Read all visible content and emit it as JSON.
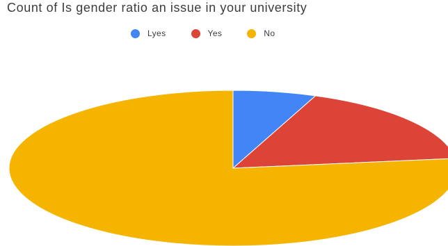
{
  "chart_data": {
    "type": "pie",
    "title": "Count of Is gender ratio an issue in your university",
    "legend": {
      "placement": "top",
      "entries": [
        "Lyes",
        "Yes",
        "No"
      ]
    },
    "slices": [
      {
        "label": "Lyes",
        "value": 6,
        "color": "#4285f4"
      },
      {
        "label": "Yes",
        "value": 17,
        "color": "#db4437"
      },
      {
        "label": "No",
        "value": 77,
        "color": "#f4b400"
      }
    ]
  }
}
